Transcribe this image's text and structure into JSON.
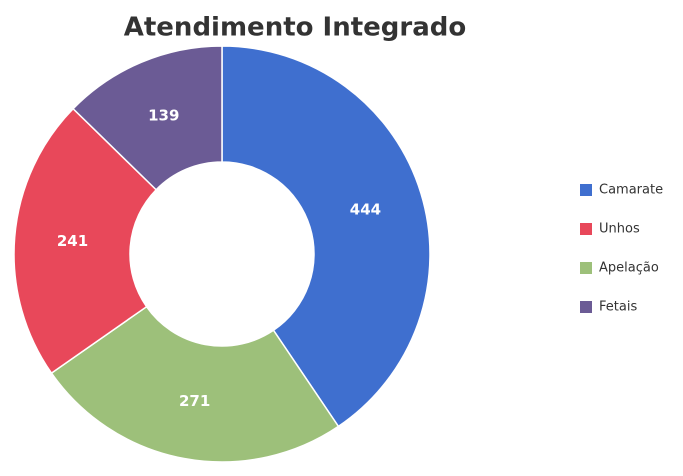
{
  "chart_data": {
    "type": "donut",
    "title": "Atendimento Integrado",
    "categories": [
      "Camarate",
      "Unhos",
      "Apelação",
      "Fetais"
    ],
    "values": [
      444,
      241,
      271,
      139
    ],
    "colors": [
      "#3f6fcf",
      "#e8485a",
      "#9dc07a",
      "#6b5b95"
    ],
    "slice_order": [
      0,
      2,
      1,
      3
    ],
    "legend": "right"
  }
}
